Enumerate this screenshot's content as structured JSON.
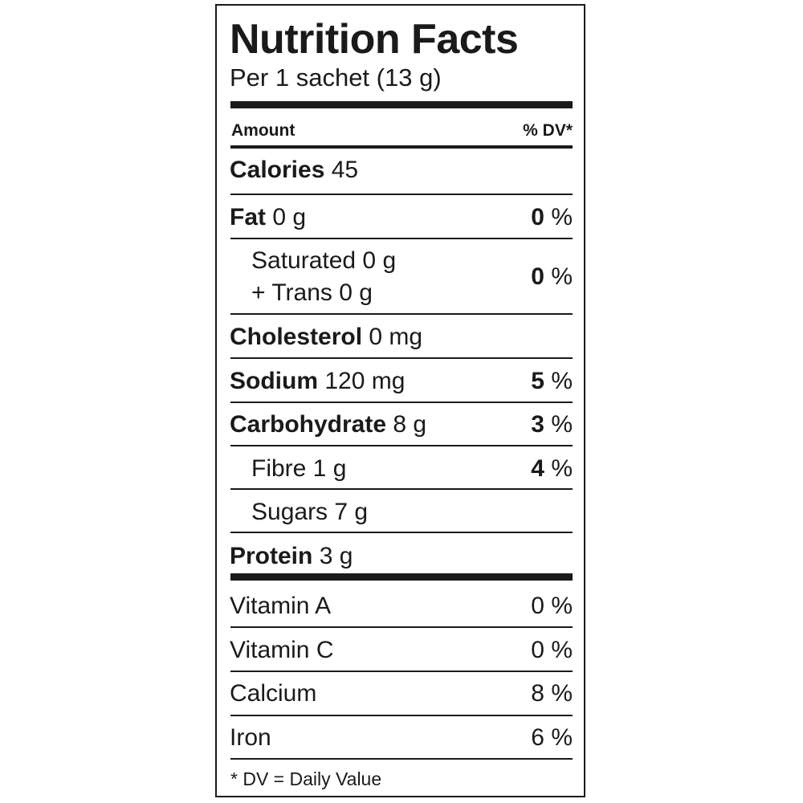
{
  "title": "Nutrition Facts",
  "serving": "Per 1 sachet (13 g)",
  "header": {
    "amount": "Amount",
    "dv": "% DV*"
  },
  "calories": {
    "label": "Calories",
    "value": "45"
  },
  "fat": {
    "label": "Fat",
    "value": "0 g",
    "pct": "0",
    "unit": " %"
  },
  "saturated": {
    "line1": "Saturated 0 g",
    "line2": "+ Trans 0 g",
    "pct": "0",
    "unit": " %"
  },
  "cholesterol": {
    "label": "Cholesterol",
    "value": "0 mg"
  },
  "sodium": {
    "label": "Sodium",
    "value": "120 mg",
    "pct": "5",
    "unit": " %"
  },
  "carbohydrate": {
    "label": "Carbohydrate",
    "value": "8 g",
    "pct": "3",
    "unit": " %"
  },
  "fibre": {
    "label": "Fibre 1 g",
    "pct": "4",
    "unit": " %"
  },
  "sugars": {
    "label": "Sugars 7 g"
  },
  "protein": {
    "label": "Protein",
    "value": "3 g"
  },
  "vitamins": [
    {
      "label": "Vitamin A",
      "pct": "0 %"
    },
    {
      "label": "Vitamin C",
      "pct": "0 %"
    },
    {
      "label": "Calcium",
      "pct": "8 %"
    },
    {
      "label": "Iron",
      "pct": "6 %"
    }
  ],
  "footnote": "* DV = Daily Value"
}
